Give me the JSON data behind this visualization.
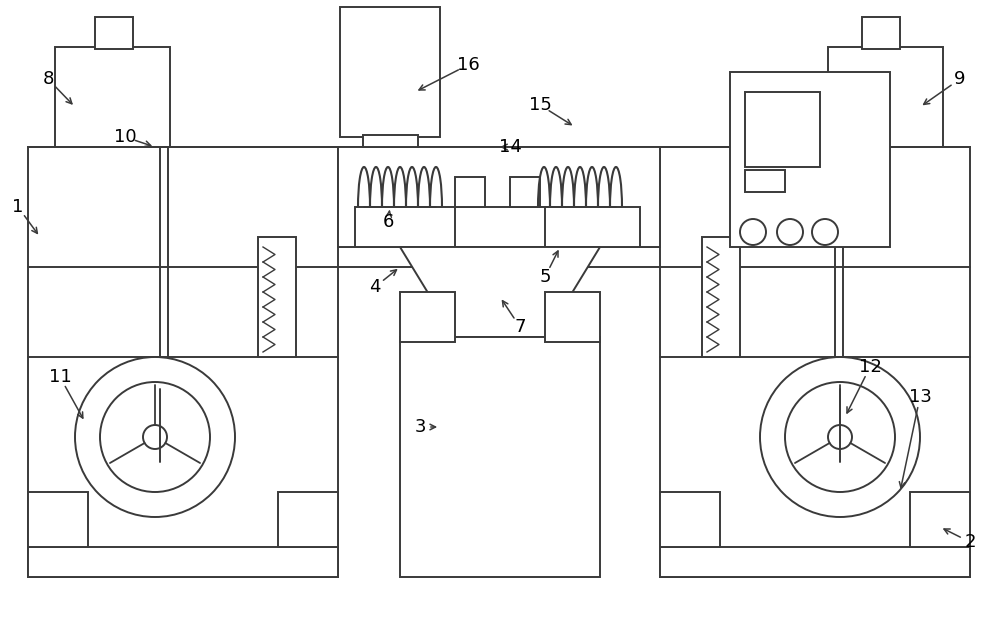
{
  "fig_width": 10.0,
  "fig_height": 6.37,
  "dpi": 100,
  "bg_color": "#ffffff",
  "line_color": "#3a3a3a",
  "lw": 1.4,
  "label_fs": 13
}
